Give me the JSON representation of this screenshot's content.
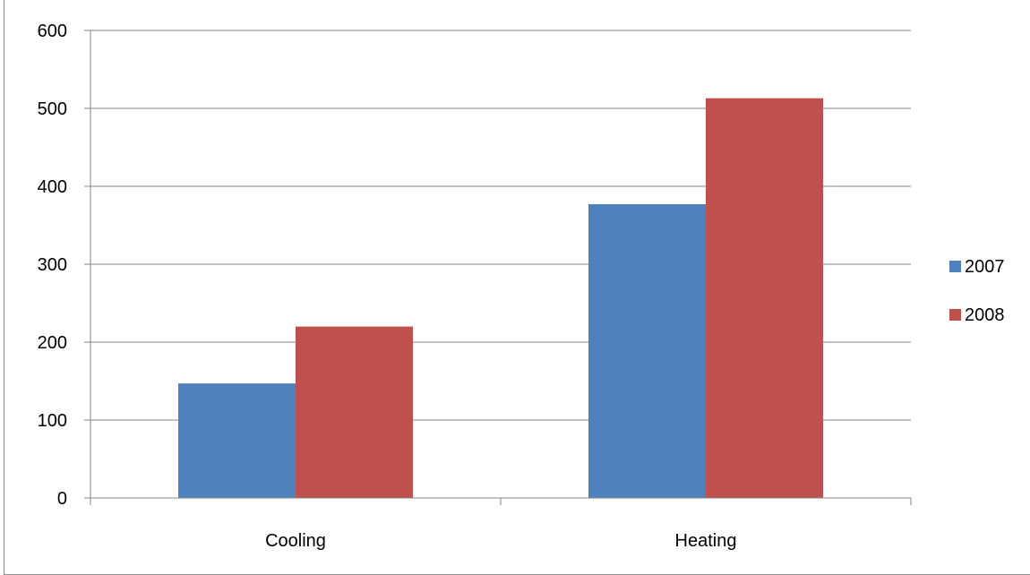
{
  "chart_data": {
    "type": "bar",
    "title": "",
    "xlabel": "",
    "ylabel": "",
    "categories": [
      "Cooling",
      "Heating"
    ],
    "series": [
      {
        "name": "2007",
        "values": [
          147,
          377
        ],
        "color": "#4F81BD"
      },
      {
        "name": "2008",
        "values": [
          220,
          513
        ],
        "color": "#C0504D"
      }
    ],
    "ylim": [
      0,
      600
    ],
    "yticks": [
      0,
      100,
      200,
      300,
      400,
      500,
      600
    ],
    "grid": true,
    "legend_position": "right"
  }
}
